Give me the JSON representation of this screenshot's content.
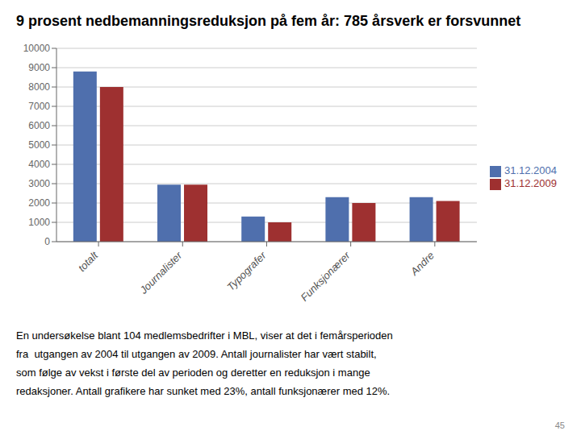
{
  "chart_data": {
    "type": "bar",
    "title": "9 prosent nedbemanningsreduksjon på fem år: 785 årsverk er forsvunnet",
    "categories": [
      "totalt",
      "Journalister",
      "Typografer",
      "Funksjonærer",
      "Andre"
    ],
    "series": [
      {
        "name": "31.12.2004",
        "color": "#4F6FAD",
        "values": [
          8800,
          2950,
          1300,
          2300,
          2300
        ]
      },
      {
        "name": "31.12.2009",
        "color": "#9E3030",
        "values": [
          8000,
          2950,
          1000,
          2000,
          2100
        ]
      }
    ],
    "ylim": [
      0,
      10000
    ],
    "yticks": [
      0,
      1000,
      2000,
      3000,
      4000,
      5000,
      6000,
      7000,
      8000,
      9000,
      10000
    ],
    "grid": true,
    "legend": "right",
    "annotations": [
      "En undersøkelse blant 104 medlemsbedrifter i MBL, viser at det i femårsperioden",
      "fra  utgangen av 2004 til utgangen av 2009. Antall journalister har vært stabilt,",
      "som følge av vekst i første del av perioden og deretter en reduksjon i mange",
      "redaksjoner. Antall grafikere har sunket med 23%, antall funksjonærer med 12%.",
      "45"
    ]
  }
}
